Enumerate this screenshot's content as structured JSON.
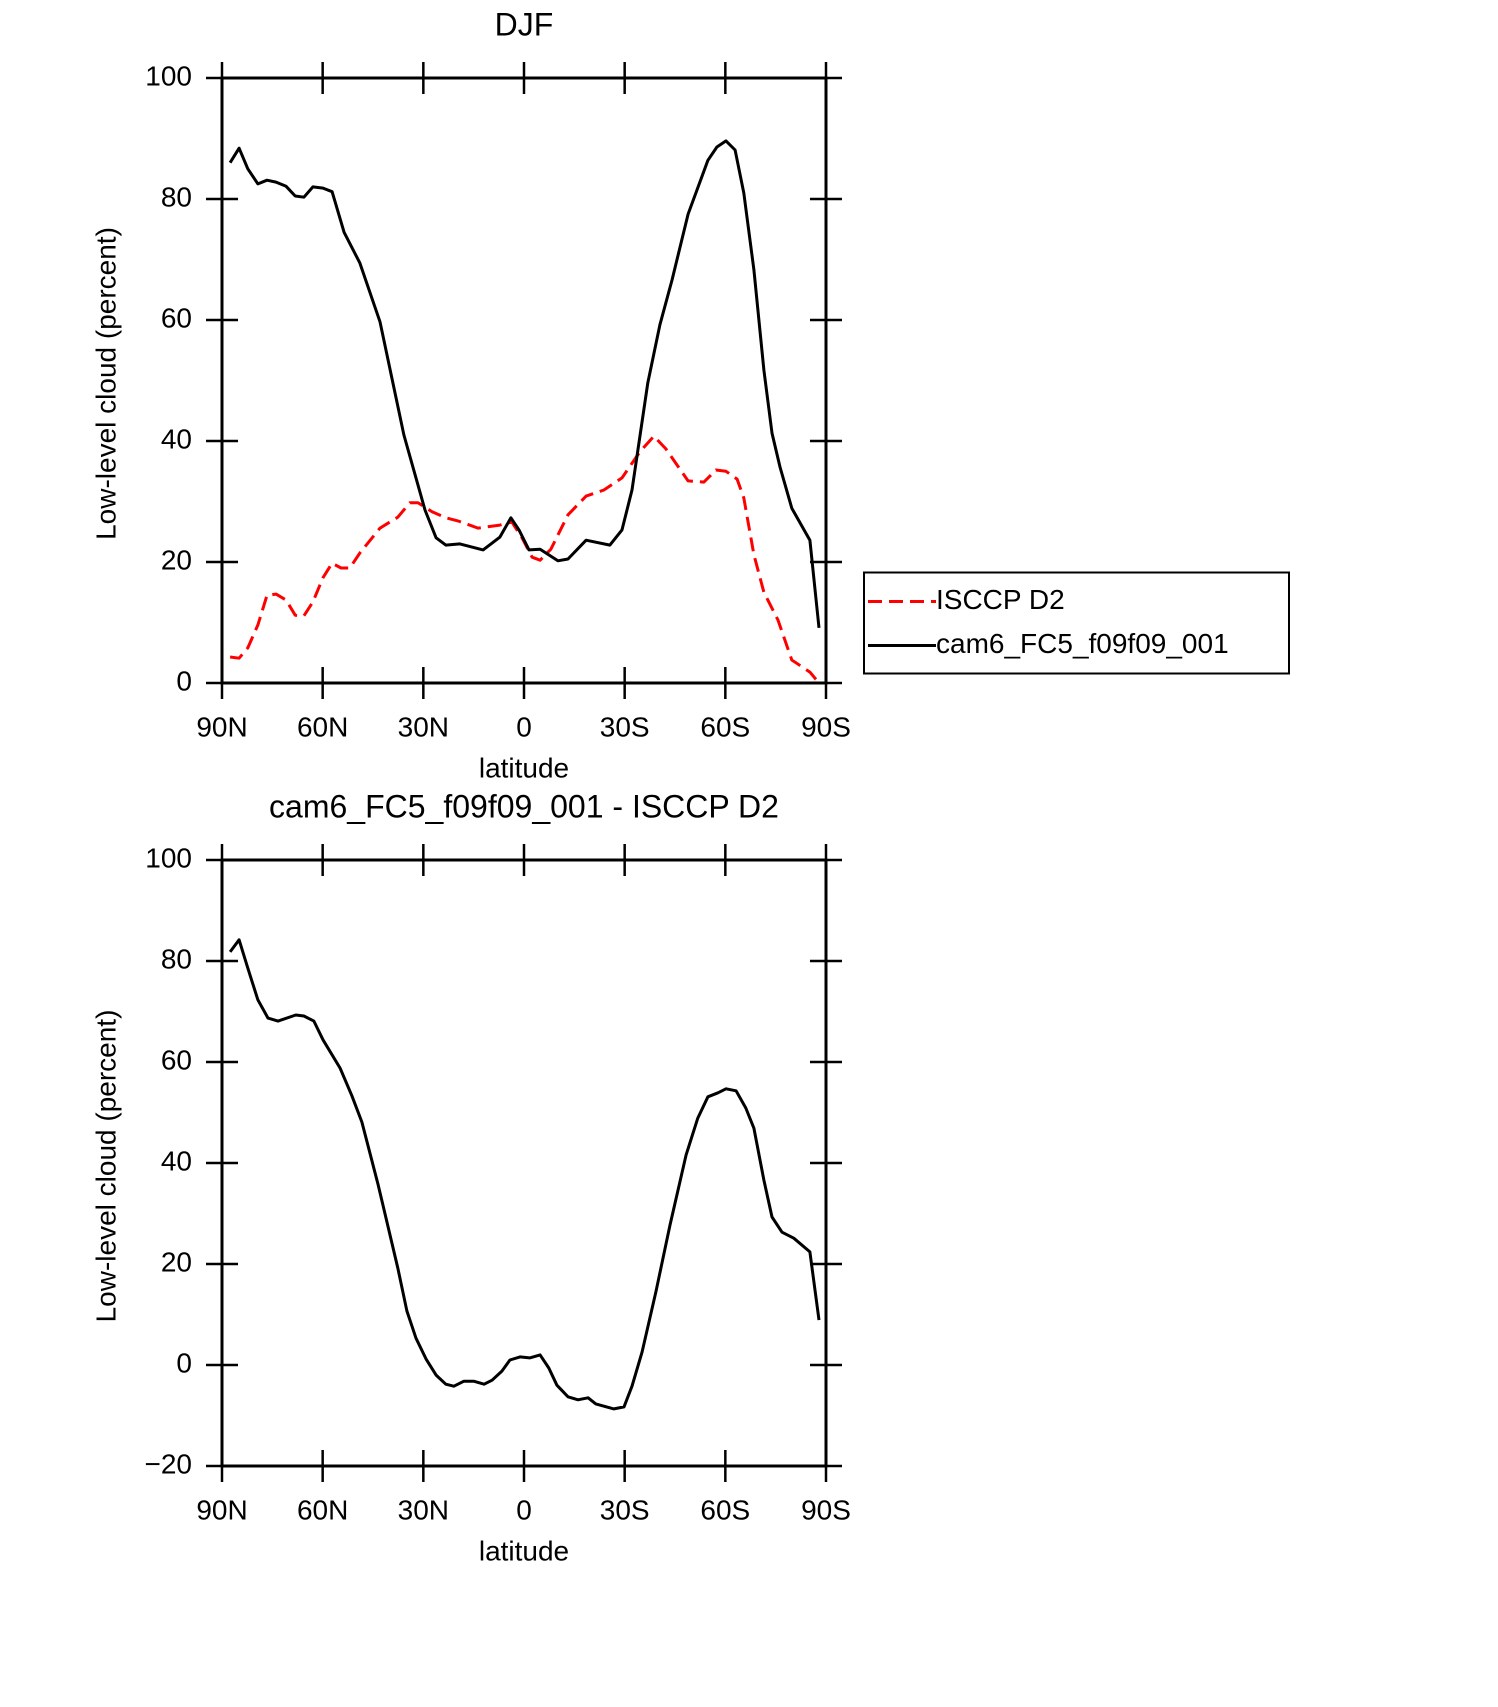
{
  "chart_data": [
    {
      "type": "line",
      "title": "DJF",
      "xlabel": "latitude",
      "ylabel": "Low-level cloud (percent)",
      "xlim": [
        90,
        -90
      ],
      "xticks": [
        {
          "value": 90,
          "label": "90N"
        },
        {
          "value": 60,
          "label": "60N"
        },
        {
          "value": 30,
          "label": "30N"
        },
        0,
        {
          "value": -30,
          "label": "30S"
        },
        {
          "value": -60,
          "label": "60S"
        },
        {
          "value": -90,
          "label": "90S"
        }
      ],
      "ylim": [
        0,
        100
      ],
      "yticks": [
        0,
        20,
        40,
        60,
        80,
        100
      ],
      "grid": false,
      "legend": "right",
      "series": [
        {
          "name": "ISCCP D2",
          "color": "#ff0000",
          "dash": "dashed",
          "x": [
            87.6,
            84.9,
            82.3,
            79.3,
            76.6,
            73.9,
            70.9,
            68.2,
            65.6,
            62.9,
            59.9,
            57.2,
            54.5,
            51.9,
            48.9,
            42.9,
            37.6,
            34,
            31.6,
            27.4,
            23.3,
            19.7,
            13.7,
            7.2,
            3.6,
            0.6,
            -2.4,
            -4.8,
            -8,
            -13.1,
            -18.5,
            -23.8,
            -29.2,
            -34.5,
            -38.7,
            -42.3,
            -48.9,
            -53.6,
            -57.2,
            -60.2,
            -63.5,
            -65.5,
            -68.5,
            -71.5,
            -75.7,
            -79.8,
            -85.2,
            -87.9
          ],
          "values": [
            4.3,
            4.1,
            5.8,
            9.6,
            14.5,
            14.7,
            13.7,
            11.2,
            11.1,
            13.4,
            17.4,
            19.8,
            19,
            19,
            21.5,
            25.6,
            27.4,
            29.8,
            29.8,
            28.3,
            27.3,
            26.8,
            25.6,
            26.1,
            26.6,
            24,
            20.8,
            20.3,
            22.1,
            27.8,
            30.9,
            31.9,
            33.9,
            38.2,
            40.8,
            38.7,
            33.4,
            33.2,
            35.2,
            35,
            33.7,
            30.6,
            21.2,
            15,
            10.4,
            3.8,
            1.8,
            0
          ]
        },
        {
          "name": "cam6_FC5_f09f09_001",
          "color": "#000000",
          "dash": "solid",
          "x": [
            87.6,
            84.9,
            82.3,
            79.3,
            76.6,
            73.9,
            70.9,
            68.2,
            65.6,
            62.9,
            59.9,
            57.2,
            53.6,
            48.9,
            42.9,
            35.8,
            29.5,
            26.2,
            23.3,
            19.1,
            12.2,
            7.2,
            3.9,
            1.5,
            -1.5,
            -4.8,
            -10.1,
            -13.1,
            -18.5,
            -25.6,
            -29.2,
            -32.2,
            -36.9,
            -40.5,
            -44.1,
            -48.9,
            -54.8,
            -57.5,
            -60.2,
            -62.9,
            -65.5,
            -68.5,
            -71.5,
            -73.9,
            -76.3,
            -79.8,
            -85.2,
            -87.9
          ],
          "values": [
            86,
            88.4,
            85,
            82.5,
            83.1,
            82.8,
            82.1,
            80.5,
            80.3,
            82,
            81.8,
            81.2,
            74.5,
            69.4,
            59.7,
            41,
            28.6,
            24,
            22.8,
            23,
            22,
            24.1,
            27.3,
            25.3,
            22,
            22.1,
            20.2,
            20.5,
            23.6,
            22.8,
            25.3,
            31.9,
            49.6,
            59.2,
            66.6,
            77.5,
            86.4,
            88.6,
            89.6,
            88.1,
            81,
            68.3,
            51.7,
            41.3,
            35.7,
            28.9,
            23.6,
            9.1
          ]
        }
      ]
    },
    {
      "type": "line",
      "title": "cam6_FC5_f09f09_001 - ISCCP D2",
      "xlabel": "latitude",
      "ylabel": "Low-level cloud (percent)",
      "xlim": [
        90,
        -90
      ],
      "xticks": [
        {
          "value": 90,
          "label": "90N"
        },
        {
          "value": 60,
          "label": "60N"
        },
        {
          "value": 30,
          "label": "30N"
        },
        0,
        {
          "value": -30,
          "label": "30S"
        },
        {
          "value": -60,
          "label": "60S"
        },
        {
          "value": -90,
          "label": "90S"
        }
      ],
      "ylim": [
        -20,
        100
      ],
      "yticks": [
        {
          "value": -20,
          "label": "−20"
        },
        0,
        20,
        40,
        60,
        80,
        100
      ],
      "grid": false,
      "series": [
        {
          "color": "#000000",
          "dash": "solid",
          "x": [
            87.6,
            84.9,
            82.3,
            79.3,
            76.3,
            73.3,
            68,
            65.6,
            62.6,
            59.9,
            54.8,
            51.3,
            48.3,
            43.5,
            37.6,
            34.9,
            32.2,
            29.2,
            26.2,
            23.3,
            20.9,
            17.9,
            15,
            11.9,
            9.5,
            6.6,
            4.2,
            1.2,
            -1.7,
            -4.8,
            -7.4,
            -9.8,
            -13.1,
            -16.1,
            -19.1,
            -21.4,
            -26.8,
            -29.8,
            -32.2,
            -35.2,
            -39.3,
            -43.5,
            -48.3,
            -51.8,
            -54.8,
            -57.8,
            -60.2,
            -63.2,
            -66.1,
            -68.5,
            -71.5,
            -73.9,
            -76.9,
            -80.4,
            -85.2,
            -87.9
          ],
          "values": [
            81.8,
            84.2,
            78.6,
            72.3,
            68.7,
            68.1,
            69.3,
            69.1,
            68.1,
            64.4,
            58.8,
            53.3,
            48.1,
            35.8,
            19.2,
            10.7,
            5.3,
            1.2,
            -2,
            -3.8,
            -4.2,
            -3.2,
            -3.2,
            -3.8,
            -3,
            -1.2,
            1,
            1.6,
            1.4,
            2,
            -0.6,
            -4,
            -6.3,
            -6.9,
            -6.5,
            -7.7,
            -8.7,
            -8.3,
            -4.2,
            2.6,
            14.5,
            27.7,
            41.6,
            48.9,
            53.1,
            53.9,
            54.7,
            54.3,
            50.9,
            46.9,
            36.6,
            29.3,
            26.3,
            25.1,
            22.4,
            8.9
          ]
        }
      ]
    }
  ]
}
